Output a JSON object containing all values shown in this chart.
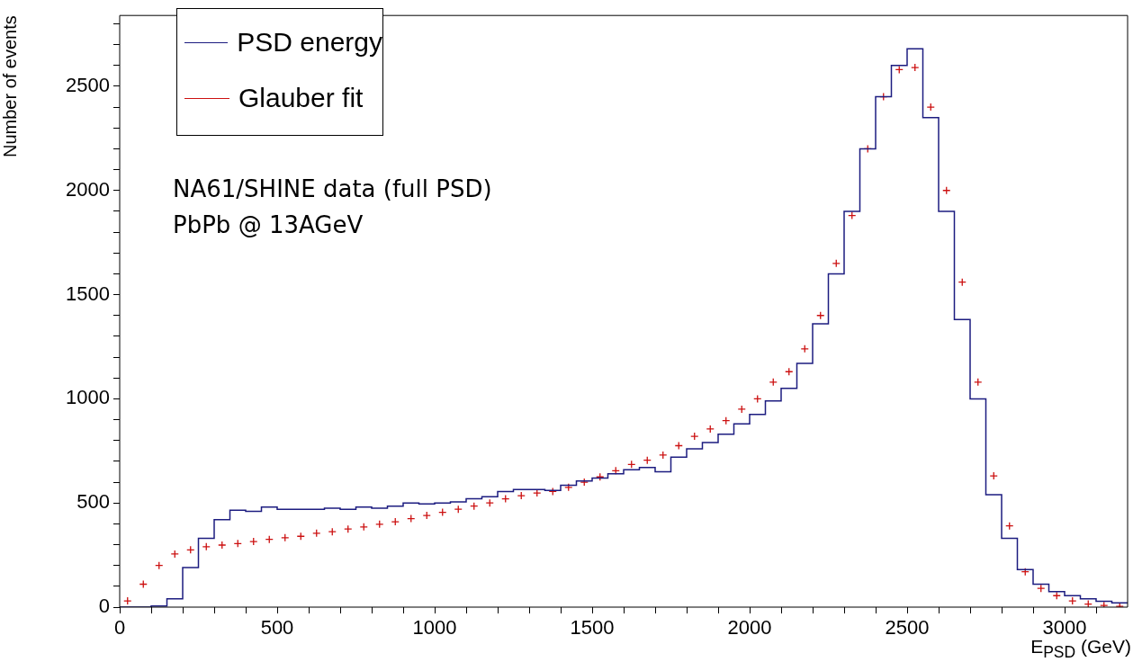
{
  "chart_data": {
    "type": "histogram",
    "xlabel": "E$_{PSD}$ (GeV)",
    "ylabel": "Number of events",
    "legend": "top left",
    "annotations": [
      "NA61/SHINE data (full PSD)",
      "PbPb @ 13AGeV"
    ],
    "xlim": [
      0,
      3200
    ],
    "ylim": [
      0,
      2840
    ],
    "xticks": [
      0,
      {
        "value": 100,
        "label": null
      },
      {
        "value": 200,
        "label": null
      },
      {
        "value": 300,
        "label": null
      },
      {
        "value": 400,
        "label": null
      },
      500,
      {
        "value": 600,
        "label": null
      },
      {
        "value": 700,
        "label": null
      },
      {
        "value": 800,
        "label": null
      },
      {
        "value": 900,
        "label": null
      },
      1000,
      {
        "value": 1100,
        "label": null
      },
      {
        "value": 1200,
        "label": null
      },
      {
        "value": 1300,
        "label": null
      },
      {
        "value": 1400,
        "label": null
      },
      1500,
      {
        "value": 1600,
        "label": null
      },
      {
        "value": 1700,
        "label": null
      },
      {
        "value": 1800,
        "label": null
      },
      {
        "value": 1900,
        "label": null
      },
      2000,
      {
        "value": 2100,
        "label": null
      },
      {
        "value": 2200,
        "label": null
      },
      {
        "value": 2300,
        "label": null
      },
      {
        "value": 2400,
        "label": null
      },
      2500,
      {
        "value": 2600,
        "label": null
      },
      {
        "value": 2700,
        "label": null
      },
      {
        "value": 2800,
        "label": null
      },
      {
        "value": 2900,
        "label": null
      },
      3000,
      {
        "value": 3100,
        "label": null
      }
    ],
    "yticks": [
      0,
      {
        "value": 100,
        "label": null
      },
      {
        "value": 200,
        "label": null
      },
      {
        "value": 300,
        "label": null
      },
      {
        "value": 400,
        "label": null
      },
      500,
      {
        "value": 600,
        "label": null
      },
      {
        "value": 700,
        "label": null
      },
      {
        "value": 800,
        "label": null
      },
      {
        "value": 900,
        "label": null
      },
      1000,
      {
        "value": 1100,
        "label": null
      },
      {
        "value": 1200,
        "label": null
      },
      {
        "value": 1300,
        "label": null
      },
      {
        "value": 1400,
        "label": null
      },
      1500,
      {
        "value": 1600,
        "label": null
      },
      {
        "value": 1700,
        "label": null
      },
      {
        "value": 1800,
        "label": null
      },
      {
        "value": 1900,
        "label": null
      },
      2000,
      {
        "value": 2100,
        "label": null
      },
      {
        "value": 2200,
        "label": null
      },
      {
        "value": 2300,
        "label": null
      },
      {
        "value": 2400,
        "label": null
      },
      2500,
      {
        "value": 2600,
        "label": null
      },
      {
        "value": 2700,
        "label": null
      },
      {
        "value": 2800,
        "label": null
      }
    ],
    "bins": [
      0,
      50,
      100,
      150,
      200,
      250,
      300,
      350,
      400,
      450,
      500,
      550,
      600,
      650,
      700,
      750,
      800,
      850,
      900,
      950,
      1000,
      1050,
      1100,
      1150,
      1200,
      1250,
      1300,
      1350,
      1400,
      1450,
      1500,
      1550,
      1600,
      1650,
      1700,
      1750,
      1800,
      1850,
      1900,
      1950,
      2000,
      2050,
      2100,
      2150,
      2200,
      2250,
      2300,
      2350,
      2400,
      2450,
      2500,
      2550,
      2600,
      2650,
      2700,
      2750,
      2800,
      2850,
      2900,
      2950,
      3000,
      3050,
      3100,
      3150,
      3200
    ],
    "series": [
      {
        "name": "PSD energy",
        "color": "#1c1c80",
        "values": [
          0,
          0,
          5,
          40,
          190,
          330,
          420,
          465,
          460,
          480,
          470,
          470,
          470,
          475,
          470,
          480,
          475,
          485,
          500,
          495,
          500,
          505,
          520,
          530,
          555,
          565,
          565,
          560,
          585,
          605,
          620,
          640,
          660,
          670,
          650,
          720,
          760,
          790,
          830,
          880,
          925,
          990,
          1050,
          1170,
          1360,
          1600,
          1900,
          2200,
          2450,
          2600,
          2680,
          2350,
          1900,
          1380,
          1000,
          540,
          330,
          180,
          110,
          75,
          55,
          40,
          28,
          20
        ]
      },
      {
        "name": "Glauber fit",
        "type": "scatter",
        "marker": "cross",
        "color": "#cc1010",
        "x": [
          25,
          75,
          125,
          175,
          225,
          275,
          325,
          375,
          425,
          475,
          525,
          575,
          625,
          675,
          725,
          775,
          825,
          875,
          925,
          975,
          1025,
          1075,
          1125,
          1175,
          1225,
          1275,
          1325,
          1375,
          1425,
          1475,
          1525,
          1575,
          1625,
          1675,
          1725,
          1775,
          1825,
          1875,
          1925,
          1975,
          2025,
          2075,
          2125,
          2175,
          2225,
          2275,
          2325,
          2375,
          2425,
          2475,
          2525,
          2575,
          2625,
          2675,
          2725,
          2775,
          2825,
          2875,
          2925,
          2975,
          3025,
          3075,
          3125,
          3175
        ],
        "values": [
          30,
          110,
          200,
          255,
          275,
          290,
          298,
          305,
          315,
          325,
          333,
          340,
          355,
          362,
          375,
          385,
          398,
          410,
          425,
          440,
          455,
          470,
          485,
          500,
          520,
          535,
          548,
          555,
          575,
          600,
          625,
          655,
          685,
          705,
          730,
          775,
          820,
          855,
          895,
          950,
          1000,
          1080,
          1130,
          1240,
          1400,
          1650,
          1880,
          2200,
          2450,
          2580,
          2590,
          2400,
          2000,
          1560,
          1080,
          630,
          390,
          170,
          90,
          55,
          30,
          15,
          8,
          4
        ]
      }
    ]
  }
}
